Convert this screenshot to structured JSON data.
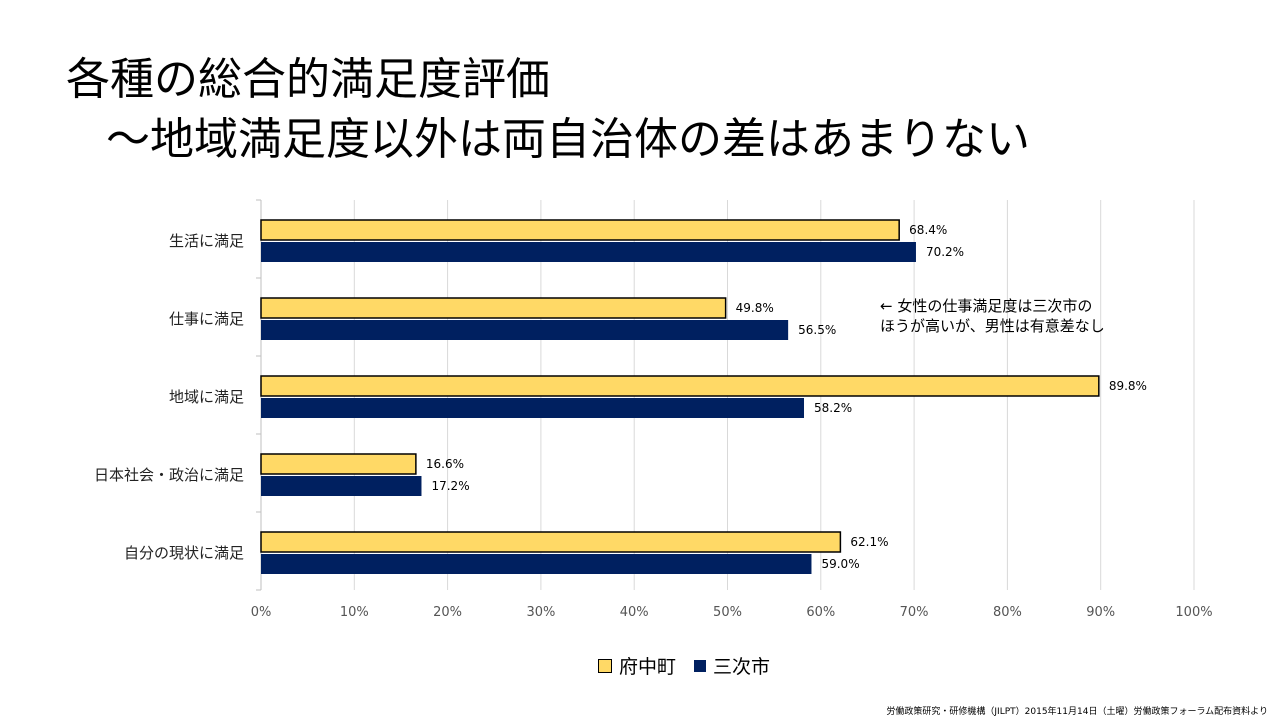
{
  "slide": {
    "title_line1": "各種の総合的満足度評価",
    "title_line2": "～地域満足度以外は両自治体の差はあまりない",
    "note_line1": "←  女性の仕事満足度は三次市の",
    "note_line2": "ほうが高いが、男性は有意差なし",
    "footer": "労働政策研究・研修機構（JILPT）2015年11月14日（土曜）労働政策フォーラム配布資料より"
  },
  "chart_data": {
    "type": "bar",
    "orientation": "horizontal",
    "categories": [
      "生活に満足",
      "仕事に満足",
      "地域に満足",
      "日本社会・政治に満足",
      "自分の現状に満足"
    ],
    "series": [
      {
        "name": "府中町",
        "values": [
          68.4,
          49.8,
          89.8,
          16.6,
          62.1
        ],
        "labels": [
          "68.4%",
          "49.8%",
          "89.8%",
          "16.6%",
          "62.1%"
        ],
        "color": "#FFD966",
        "border": "#000000"
      },
      {
        "name": "三次市",
        "values": [
          70.2,
          56.5,
          58.2,
          17.2,
          59.0
        ],
        "labels": [
          "70.2%",
          "56.5%",
          "58.2%",
          "17.2%",
          "59.0%"
        ],
        "color": "#002060"
      }
    ],
    "xlim": [
      0,
      100
    ],
    "x_ticks": [
      "0%",
      "10%",
      "20%",
      "30%",
      "40%",
      "50%",
      "60%",
      "70%",
      "80%",
      "90%",
      "100%"
    ],
    "grid": true,
    "legend_position": "bottom"
  }
}
